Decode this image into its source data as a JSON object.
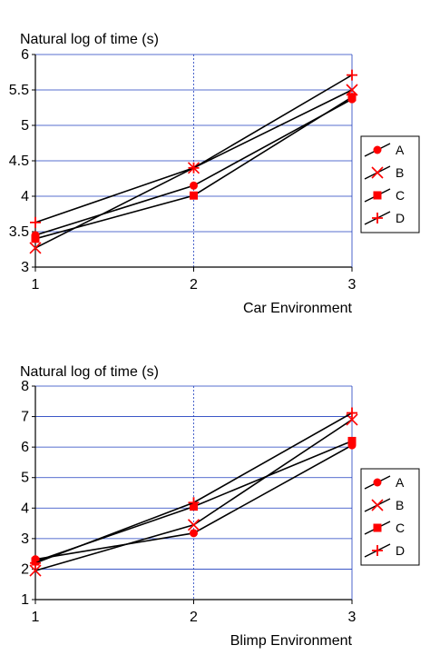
{
  "colors": {
    "line": "#000000",
    "marker": "#ff0000",
    "grid": "#1f3fbf",
    "frame": "#000000"
  },
  "chart_data": [
    {
      "type": "line",
      "title": "",
      "ylabel": "Natural log of time (s)",
      "xlabel": "Car Environment",
      "categories": [
        "1",
        "2",
        "3"
      ],
      "ylim": [
        3,
        6
      ],
      "yticks": [
        "3",
        "3.5",
        "4",
        "4.5",
        "5",
        "5.5",
        "6"
      ],
      "grid": true,
      "legend": "right",
      "series": [
        {
          "name": "A",
          "marker": "circle",
          "values": [
            3.45,
            4.15,
            5.37
          ]
        },
        {
          "name": "B",
          "marker": "x",
          "values": [
            3.27,
            4.4,
            5.5
          ]
        },
        {
          "name": "C",
          "marker": "square",
          "values": [
            3.4,
            4.01,
            5.4
          ]
        },
        {
          "name": "D",
          "marker": "plus",
          "values": [
            3.63,
            4.4,
            5.71
          ]
        }
      ]
    },
    {
      "type": "line",
      "title": "",
      "ylabel": "Natural log of time (s)",
      "xlabel": "Blimp Environment",
      "categories": [
        "1",
        "2",
        "3"
      ],
      "ylim": [
        1,
        8
      ],
      "yticks": [
        "1",
        "2",
        "3",
        "4",
        "5",
        "6",
        "7",
        "8"
      ],
      "grid": true,
      "legend": "right",
      "series": [
        {
          "name": "A",
          "marker": "circle",
          "values": [
            2.32,
            3.18,
            6.06
          ]
        },
        {
          "name": "B",
          "marker": "x",
          "values": [
            1.95,
            3.45,
            6.9
          ]
        },
        {
          "name": "C",
          "marker": "square",
          "values": [
            2.25,
            4.05,
            6.2
          ]
        },
        {
          "name": "D",
          "marker": "plus",
          "values": [
            2.2,
            4.18,
            7.12
          ]
        }
      ]
    }
  ]
}
